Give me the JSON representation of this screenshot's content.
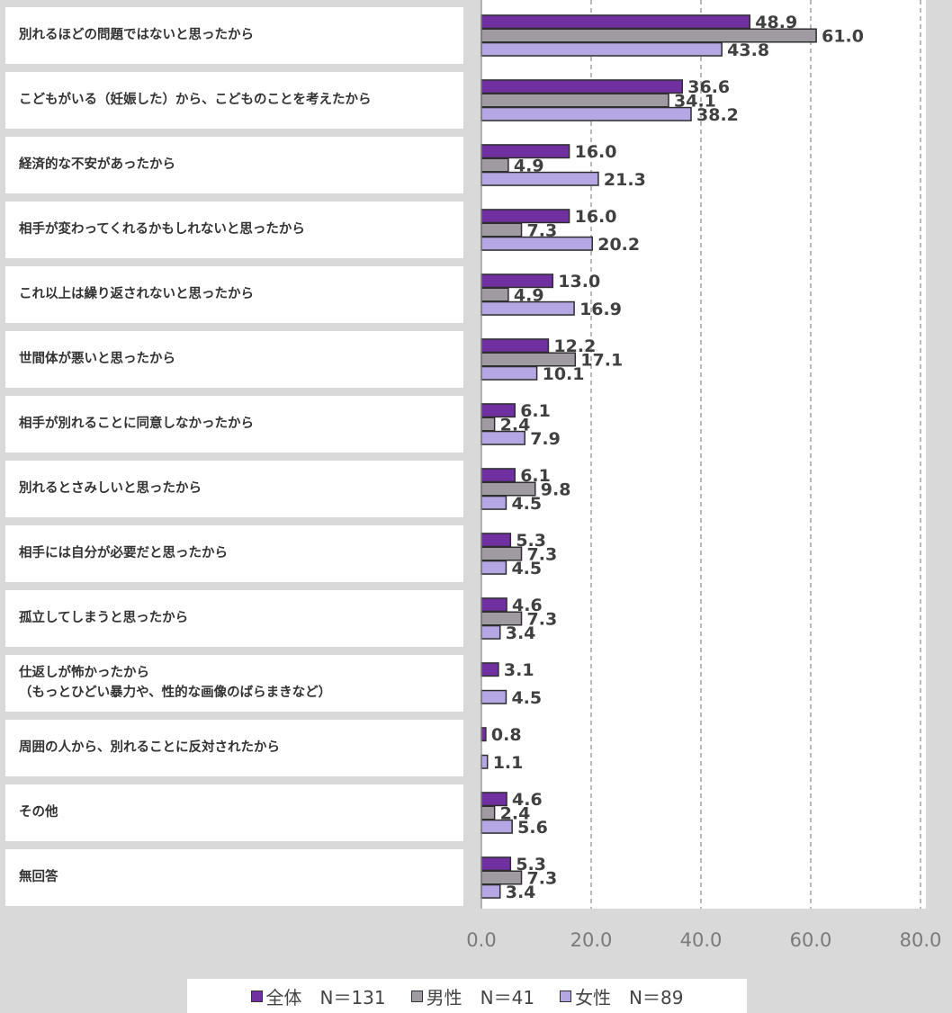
{
  "chart_data": {
    "type": "bar",
    "orientation": "horizontal",
    "categories": [
      "別れるほどの問題ではないと思ったから",
      "こどもがいる（妊娠した）から、こどものことを考えたから",
      "経済的な不安があったから",
      "相手が変わってくれるかもしれないと思ったから",
      "これ以上は繰り返されないと思ったから",
      "世間体が悪いと思ったから",
      "相手が別れることに同意しなかったから",
      "別れるとさみしいと思ったから",
      "相手には自分が必要だと思ったから",
      "孤立してしまうと思ったから",
      "仕返しが怖かったから\n（もっとひどい暴力や、性的な画像のばらまきなど）",
      "周囲の人から、別れることに反対されたから",
      "その他",
      "無回答"
    ],
    "series": [
      {
        "name": "全体　N＝131",
        "color": "#7030a0",
        "values": [
          48.9,
          36.6,
          16.0,
          16.0,
          13.0,
          12.2,
          6.1,
          6.1,
          5.3,
          4.6,
          3.1,
          0.8,
          4.6,
          5.3
        ]
      },
      {
        "name": "男性　N＝41",
        "color": "#a09aa3",
        "values": [
          61.0,
          34.1,
          4.9,
          7.3,
          4.9,
          17.1,
          2.4,
          9.8,
          7.3,
          7.3,
          null,
          null,
          2.4,
          7.3
        ]
      },
      {
        "name": "女性　N＝89",
        "color": "#b4a7e4",
        "values": [
          43.8,
          38.2,
          21.3,
          20.2,
          16.9,
          10.1,
          7.9,
          4.5,
          4.5,
          3.4,
          4.5,
          1.1,
          5.6,
          3.4
        ]
      }
    ],
    "value_labels": [
      [
        "48.9",
        "36.6",
        "16.0",
        "16.0",
        "13.0",
        "12.2",
        "6.1",
        "6.1",
        "5.3",
        "4.6",
        "3.1",
        "0.8",
        "4.6",
        "5.3"
      ],
      [
        "61.0",
        "34.1",
        "4.9",
        "7.3",
        "4.9",
        "17.1",
        "2.4",
        "9.8",
        "7.3",
        "7.3",
        "",
        "",
        "2.4",
        "7.3"
      ],
      [
        "43.8",
        "38.2",
        "21.3",
        "20.2",
        "16.9",
        "10.1",
        "7.9",
        "4.5",
        "4.5",
        "3.4",
        "4.5",
        "1.1",
        "5.6",
        "3.4"
      ]
    ],
    "xlim": [
      0,
      80
    ],
    "xticks": [
      "0.0",
      "20.0",
      "40.0",
      "60.0",
      "80.0"
    ],
    "grid": "vertical dashed",
    "legend_position": "bottom",
    "title": "",
    "xlabel": "",
    "ylabel": ""
  }
}
